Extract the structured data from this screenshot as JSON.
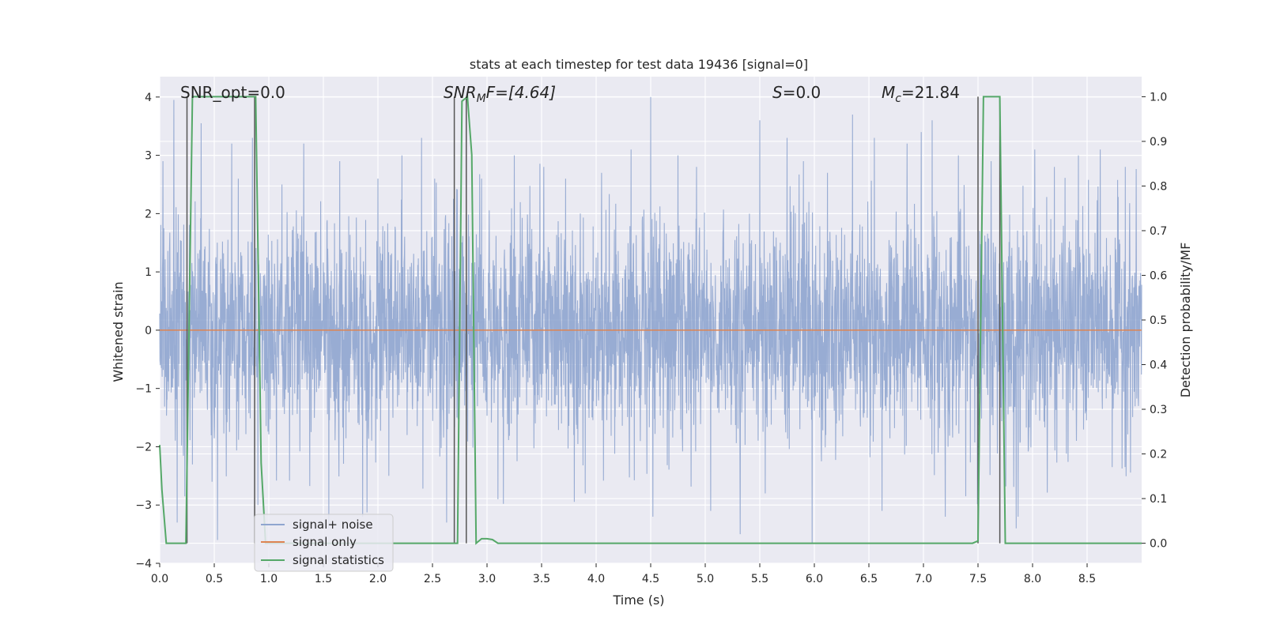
{
  "chart_data": {
    "type": "line",
    "title": "stats at each timestep for test data 19436 [signal=0]",
    "xlabel": "Time (s)",
    "ylabel_left": "Whitened strain",
    "ylabel_right": "Detection probability/MF",
    "xlim": [
      0.0,
      9.0
    ],
    "ylim_left": [
      -4.0,
      4.35
    ],
    "ylim_right": [
      -0.045,
      1.045
    ],
    "x_ticks": [
      "0.0",
      "0.5",
      "1.0",
      "1.5",
      "2.0",
      "2.5",
      "3.0",
      "3.5",
      "4.0",
      "4.5",
      "5.0",
      "5.5",
      "6.0",
      "6.5",
      "7.0",
      "7.5",
      "8.0",
      "8.5"
    ],
    "y_ticks_left": [
      "4",
      "3",
      "2",
      "1",
      "0",
      "−1",
      "−2",
      "−3",
      "−4"
    ],
    "y_ticks_right": [
      "1.0",
      "0.9",
      "0.8",
      "0.7",
      "0.6",
      "0.5",
      "0.4",
      "0.3",
      "0.2",
      "0.1",
      "0.0"
    ],
    "grid": true,
    "legend_position": "lower-left",
    "legend": [
      {
        "label": "signal+ noise",
        "color": "#8fa5cf"
      },
      {
        "label": "signal only",
        "color": "#dd8452"
      },
      {
        "label": "signal statistics",
        "color": "#55a868"
      }
    ],
    "annotations": {
      "snr_opt": "SNR_opt=0.0",
      "snr_mf_sym": "SNR",
      "snr_mf_sub": "M",
      "snr_mf_tail": "F=[4.64]",
      "s_sym": "S",
      "s_tail": "=0.0",
      "mc_sym": "M",
      "mc_sub": "c",
      "mc_tail": "=21.84"
    },
    "series": [
      {
        "name": "signal+ noise",
        "axis": "left",
        "color": "#8fa5cf",
        "description": "dense whitened noise, typical range about -2.2 to 2.2 with spikes to about ±4"
      },
      {
        "name": "signal only",
        "axis": "left",
        "color": "#dd8452",
        "x": [
          0.0,
          9.0
        ],
        "y": [
          0.0,
          0.0
        ]
      },
      {
        "name": "signal statistics",
        "axis": "right",
        "color": "#55a868",
        "x": [
          0.0,
          0.02,
          0.06,
          0.2,
          0.24,
          0.3,
          0.6,
          0.88,
          0.93,
          0.97,
          2.7,
          2.73,
          2.77,
          2.82,
          2.86,
          2.9,
          2.95,
          3.0,
          3.05,
          3.1,
          3.15,
          5.0,
          7.45,
          7.5,
          7.55,
          7.57,
          7.6,
          7.67,
          7.7,
          7.75,
          7.8,
          9.0
        ],
        "y": [
          0.22,
          0.12,
          0.0,
          0.0,
          0.0,
          1.0,
          1.0,
          1.0,
          0.18,
          0.0,
          0.0,
          0.0,
          0.99,
          1.0,
          0.87,
          0.0,
          0.01,
          0.01,
          0.008,
          0.0,
          0.0,
          0.0,
          0.0,
          0.005,
          1.0,
          1.0,
          1.0,
          1.0,
          1.0,
          0.0,
          0.0,
          0.0
        ]
      }
    ],
    "vertical_markers_x": [
      0.25,
      0.87,
      2.7,
      2.81,
      7.5,
      7.7
    ],
    "noise_spikes": [
      [
        0.03,
        2.9
      ],
      [
        0.13,
        3.95
      ],
      [
        0.16,
        -3.3
      ],
      [
        0.38,
        3.55
      ],
      [
        0.48,
        -2.6
      ],
      [
        0.53,
        -3.6
      ],
      [
        0.72,
        2.6
      ],
      [
        0.85,
        3.3
      ],
      [
        0.9,
        -3.0
      ],
      [
        1.12,
        2.5
      ],
      [
        1.32,
        3.2
      ],
      [
        1.55,
        -3.4
      ],
      [
        1.65,
        2.9
      ],
      [
        2.0,
        2.6
      ],
      [
        2.1,
        -2.5
      ],
      [
        2.22,
        3.0
      ],
      [
        2.4,
        3.3
      ],
      [
        2.52,
        2.6
      ],
      [
        2.63,
        -3.3
      ],
      [
        2.95,
        2.6
      ],
      [
        3.1,
        -2.9
      ],
      [
        3.25,
        3.0
      ],
      [
        3.52,
        2.8
      ],
      [
        3.72,
        2.6
      ],
      [
        3.9,
        -2.8
      ],
      [
        4.05,
        2.7
      ],
      [
        4.32,
        3.1
      ],
      [
        4.5,
        4.0
      ],
      [
        4.52,
        -3.2
      ],
      [
        4.75,
        3.0
      ],
      [
        4.92,
        2.8
      ],
      [
        5.05,
        -3.1
      ],
      [
        5.32,
        -3.5
      ],
      [
        5.5,
        3.6
      ],
      [
        5.55,
        -2.8
      ],
      [
        5.75,
        3.3
      ],
      [
        5.9,
        2.9
      ],
      [
        5.98,
        -3.65
      ],
      [
        6.12,
        2.7
      ],
      [
        6.35,
        3.7
      ],
      [
        6.55,
        3.3
      ],
      [
        6.62,
        -3.1
      ],
      [
        6.85,
        3.2
      ],
      [
        6.98,
        3.4
      ],
      [
        7.08,
        3.6
      ],
      [
        7.2,
        -3.2
      ],
      [
        7.32,
        3.0
      ],
      [
        7.62,
        2.9
      ],
      [
        7.85,
        -3.4
      ],
      [
        8.02,
        3.1
      ],
      [
        8.2,
        2.8
      ],
      [
        8.42,
        3.0
      ],
      [
        8.62,
        3.1
      ],
      [
        8.85,
        2.8
      ]
    ]
  }
}
